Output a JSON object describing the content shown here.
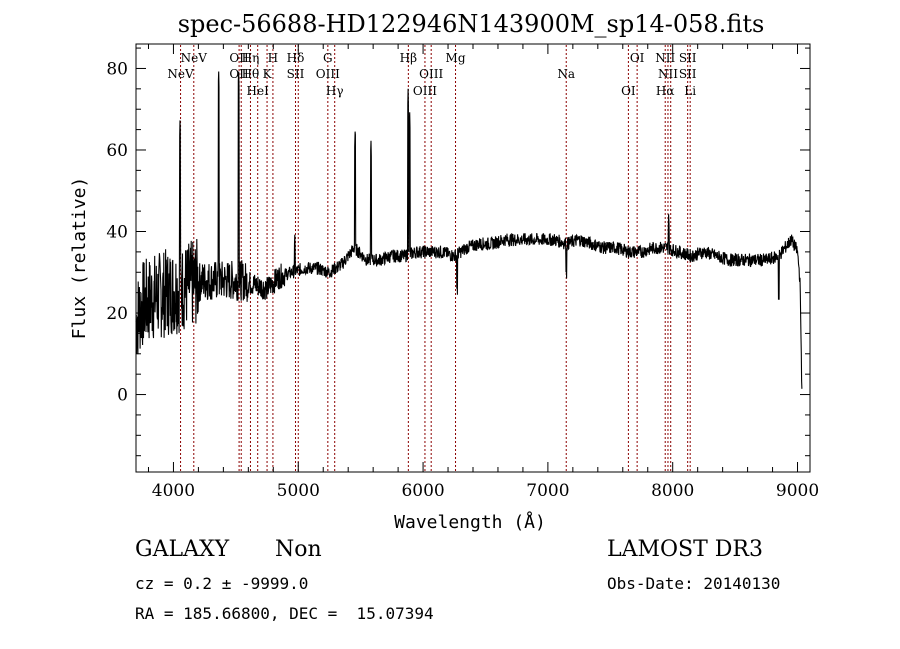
{
  "chart_data": {
    "type": "line",
    "title": "spec-56688-HD122946N143900M_sp14-058.fits",
    "xlabel": "Wavelength (Å)",
    "ylabel": "Flux (relative)",
    "xlim": [
      3700,
      9100
    ],
    "ylim": [
      -19,
      86
    ],
    "xticks": [
      4000,
      5000,
      6000,
      7000,
      8000,
      9000
    ],
    "yticks": [
      0,
      20,
      40,
      60,
      80
    ],
    "grid": false,
    "line_color": "#000000",
    "marker_color": "#8b0000",
    "line_markers": [
      {
        "x": 4057,
        "upper": "",
        "lower": "NeV"
      },
      {
        "x": 4163,
        "upper": "NeV",
        "lower": ""
      },
      {
        "x": 4526,
        "upper": "OII",
        "lower": "OII"
      },
      {
        "x": 4543,
        "upper": "",
        "lower": ""
      },
      {
        "x": 4617,
        "upper": "Hη",
        "lower": "Hθ"
      },
      {
        "x": 4675,
        "upper": "",
        "lower": "HeI"
      },
      {
        "x": 4750,
        "upper": "",
        "lower": "K"
      },
      {
        "x": 4797,
        "upper": "H",
        "lower": ""
      },
      {
        "x": 4978,
        "upper": "Hδ",
        "lower": "SII"
      },
      {
        "x": 5000,
        "upper": "",
        "lower": ""
      },
      {
        "x": 5237,
        "upper": "G",
        "lower": "OIII"
      },
      {
        "x": 5292,
        "upper": "",
        "lower": "Hγ"
      },
      {
        "x": 5882,
        "upper": "Hβ",
        "lower": ""
      },
      {
        "x": 6015,
        "upper": "",
        "lower": "OIII"
      },
      {
        "x": 6065,
        "upper": "",
        "lower": "OIII"
      },
      {
        "x": 6260,
        "upper": "Mg",
        "lower": ""
      },
      {
        "x": 7147,
        "upper": "",
        "lower": "Na"
      },
      {
        "x": 7645,
        "upper": "",
        "lower": "OI"
      },
      {
        "x": 7715,
        "upper": "OI",
        "lower": ""
      },
      {
        "x": 7940,
        "upper": "NII",
        "lower": "Hα"
      },
      {
        "x": 7962,
        "upper": "",
        "lower": "NII"
      },
      {
        "x": 7984,
        "upper": "",
        "lower": ""
      },
      {
        "x": 8120,
        "upper": "SII",
        "lower": "SII"
      },
      {
        "x": 8140,
        "upper": "",
        "lower": "Li"
      }
    ],
    "continuum": [
      [
        3700,
        18
      ],
      [
        3750,
        22
      ],
      [
        3850,
        24
      ],
      [
        3950,
        25
      ],
      [
        4050,
        26
      ],
      [
        4150,
        27
      ],
      [
        4250,
        28
      ],
      [
        4350,
        28
      ],
      [
        4450,
        28
      ],
      [
        4550,
        28
      ],
      [
        4650,
        27
      ],
      [
        4750,
        26
      ],
      [
        4850,
        29
      ],
      [
        4950,
        30
      ],
      [
        5050,
        31
      ],
      [
        5150,
        31
      ],
      [
        5250,
        30
      ],
      [
        5350,
        32
      ],
      [
        5450,
        36
      ],
      [
        5550,
        33
      ],
      [
        5650,
        33
      ],
      [
        5750,
        34
      ],
      [
        5850,
        34
      ],
      [
        5950,
        35
      ],
      [
        6050,
        35
      ],
      [
        6150,
        35
      ],
      [
        6250,
        34
      ],
      [
        6350,
        36
      ],
      [
        6450,
        37
      ],
      [
        6550,
        37
      ],
      [
        6650,
        38
      ],
      [
        6750,
        38
      ],
      [
        6850,
        38
      ],
      [
        6950,
        38
      ],
      [
        7050,
        38
      ],
      [
        7150,
        37
      ],
      [
        7250,
        38
      ],
      [
        7350,
        37
      ],
      [
        7450,
        36
      ],
      [
        7550,
        36
      ],
      [
        7650,
        35
      ],
      [
        7750,
        35
      ],
      [
        7850,
        36
      ],
      [
        7950,
        36
      ],
      [
        8050,
        35
      ],
      [
        8150,
        34
      ],
      [
        8250,
        35
      ],
      [
        8350,
        34
      ],
      [
        8450,
        33
      ],
      [
        8550,
        33
      ],
      [
        8650,
        33
      ],
      [
        8750,
        33
      ],
      [
        8850,
        34
      ],
      [
        8950,
        38
      ],
      [
        9000,
        35
      ],
      [
        9020,
        28
      ],
      [
        9030,
        10
      ],
      [
        9035,
        0
      ]
    ],
    "features": [
      {
        "x": 4053,
        "y": 68
      },
      {
        "x": 4362,
        "y": 80
      },
      {
        "x": 4522,
        "y": 80
      },
      {
        "x": 5456,
        "y": 66
      },
      {
        "x": 5582,
        "y": 63
      },
      {
        "x": 5880,
        "y": 75
      },
      {
        "x": 5892,
        "y": 70
      },
      {
        "x": 7968,
        "y": 45
      },
      {
        "x": 4972,
        "y": 40
      },
      {
        "x": 6272,
        "y": 29
      },
      {
        "x": 7147,
        "y": 33
      },
      {
        "x": 8850,
        "y": 27
      }
    ]
  },
  "info": {
    "class": "GALAXY",
    "subclass": "Non",
    "survey": "LAMOST DR3",
    "cz": "cz = 0.2 ± -9999.0",
    "obs_date": "Obs-Date: 20140130",
    "coords": "RA = 185.66800, DEC =  15.07394"
  }
}
